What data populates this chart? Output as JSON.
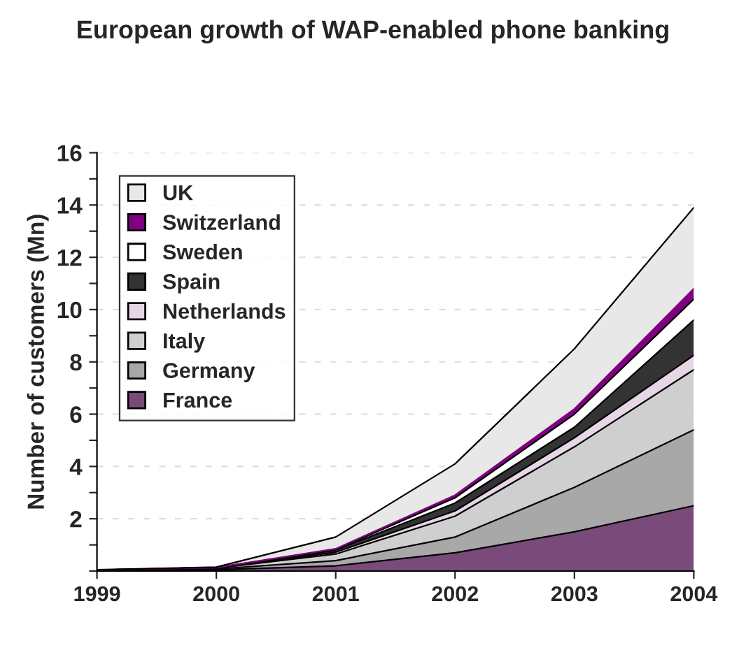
{
  "chart_data": {
    "type": "area",
    "stacked": true,
    "title": "European growth of WAP-enabled phone banking",
    "ylabel": "Number of customers (Mn)",
    "categories": [
      "1999",
      "2000",
      "2001",
      "2002",
      "2003",
      "2004"
    ],
    "series": [
      {
        "name": "France",
        "color": "#7a4a7a",
        "values": [
          0.02,
          0.05,
          0.2,
          0.7,
          1.5,
          2.5
        ]
      },
      {
        "name": "Germany",
        "color": "#a8a8a8",
        "values": [
          0.01,
          0.03,
          0.2,
          0.6,
          1.7,
          2.9
        ]
      },
      {
        "name": "Italy",
        "color": "#cfcfcf",
        "values": [
          0.01,
          0.03,
          0.25,
          0.8,
          1.55,
          2.3
        ]
      },
      {
        "name": "Netherlands",
        "color": "#e6d6e6",
        "values": [
          0,
          0.01,
          0.07,
          0.2,
          0.35,
          0.55
        ]
      },
      {
        "name": "Spain",
        "color": "#333333",
        "values": [
          0,
          0.01,
          0.08,
          0.3,
          0.4,
          1.35
        ]
      },
      {
        "name": "Sweden",
        "color": "#ffffff",
        "values": [
          0,
          0,
          0.02,
          0.2,
          0.5,
          0.8
        ]
      },
      {
        "name": "Switzerland",
        "color": "#800080",
        "values": [
          0,
          0,
          0.03,
          0.1,
          0.2,
          0.4
        ]
      },
      {
        "name": "UK",
        "color": "#e8e8e8",
        "values": [
          0.01,
          0.02,
          0.45,
          1.2,
          2.3,
          3.1
        ]
      }
    ],
    "ylim": [
      0,
      16
    ],
    "yticks": [
      {
        "value": 0,
        "label": null
      },
      {
        "value": 1,
        "label": null
      },
      2,
      {
        "value": 3,
        "label": null
      },
      4,
      {
        "value": 5,
        "label": null
      },
      6,
      {
        "value": 7,
        "label": null
      },
      8,
      {
        "value": 9,
        "label": null
      },
      10,
      {
        "value": 11,
        "label": null
      },
      12,
      {
        "value": 13,
        "label": null
      },
      14,
      {
        "value": 15,
        "label": null
      },
      16
    ],
    "grid": "y",
    "legend": "top left"
  }
}
